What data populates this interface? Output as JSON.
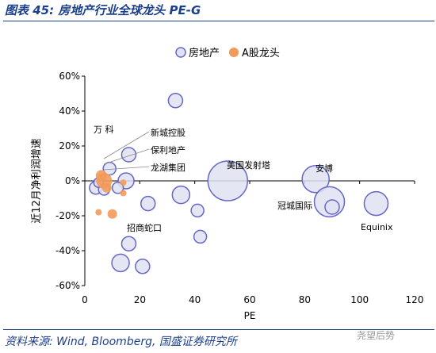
{
  "header": {
    "title": "图表 45: 房地产行业全球龙头 PE-G"
  },
  "footer": {
    "source": "资料来源: Wind, Bloomberg, 国盛证券研究所",
    "watermark": "尧望后势"
  },
  "colors": {
    "global": "#6667c6",
    "global_fill": "#dfe3f1",
    "a_share": "#f39a5b",
    "title": "#1b3f8b"
  },
  "chart_data": {
    "type": "scatter",
    "variant": "bubble",
    "xlabel": "PE",
    "ylabel": "近12月净利润增速",
    "xlim": [
      0,
      120
    ],
    "ylim": [
      -0.6,
      0.6
    ],
    "xticks": [
      "0",
      "20",
      "40",
      "60",
      "80",
      "100",
      "120"
    ],
    "yticks": [
      "60%",
      "40%",
      "20%",
      "0%",
      "-20%",
      "-40%",
      "-60%"
    ],
    "legend": {
      "position": "top-right",
      "entries": [
        "房地产",
        "A股龙头"
      ]
    },
    "series": [
      {
        "name": "房地产",
        "points": [
          {
            "x": 33,
            "y": 0.46,
            "size": 9
          },
          {
            "x": 16,
            "y": 0.15,
            "size": 9
          },
          {
            "x": 15,
            "y": 0.0,
            "size": 10
          },
          {
            "x": 9,
            "y": 0.07,
            "size": 8
          },
          {
            "x": 4,
            "y": -0.04,
            "size": 8
          },
          {
            "x": 7,
            "y": -0.05,
            "size": 7
          },
          {
            "x": 12,
            "y": -0.04,
            "size": 7
          },
          {
            "x": 5,
            "y": -0.01,
            "size": 6
          },
          {
            "x": 35,
            "y": -0.08,
            "size": 11
          },
          {
            "x": 23,
            "y": -0.13,
            "size": 9
          },
          {
            "x": 41,
            "y": -0.17,
            "size": 8
          },
          {
            "x": 42,
            "y": -0.32,
            "size": 8
          },
          {
            "x": 16,
            "y": -0.36,
            "size": 9
          },
          {
            "x": 13,
            "y": -0.47,
            "size": 11
          },
          {
            "x": 21,
            "y": -0.49,
            "size": 9
          },
          {
            "x": 52,
            "y": 0.0,
            "size": 25
          },
          {
            "x": 84,
            "y": 0.01,
            "size": 17
          },
          {
            "x": 89,
            "y": -0.12,
            "size": 19
          },
          {
            "x": 90,
            "y": -0.15,
            "size": 9
          },
          {
            "x": 106,
            "y": -0.13,
            "size": 15
          }
        ]
      },
      {
        "name": "A股龙头",
        "points": [
          {
            "x": 6,
            "y": 0.03,
            "size": 7
          },
          {
            "x": 7,
            "y": 0.0,
            "size": 10
          },
          {
            "x": 8,
            "y": -0.04,
            "size": 6
          },
          {
            "x": 14,
            "y": -0.01,
            "size": 4
          },
          {
            "x": 14,
            "y": -0.07,
            "size": 4
          },
          {
            "x": 5,
            "y": -0.18,
            "size": 4
          },
          {
            "x": 10,
            "y": -0.19,
            "size": 6
          }
        ]
      }
    ],
    "annotations": [
      "万 科",
      "新城控股",
      "保利地产",
      "龙湖集团",
      "招商蛇口",
      "美国发射塔",
      "安博",
      "冠城国际",
      "Equinix"
    ]
  }
}
